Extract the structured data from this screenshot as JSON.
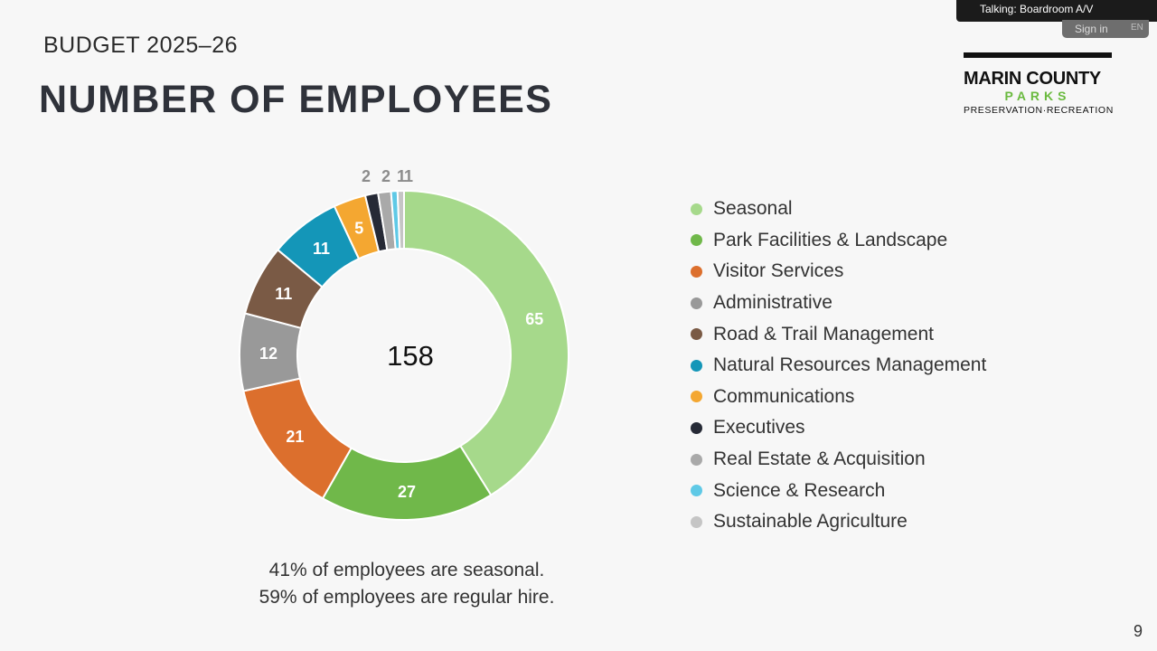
{
  "slide": {
    "subtitle": "BUDGET 2025–26",
    "title": "NUMBER OF EMPLOYEES",
    "page_number": "9",
    "notes": [
      "41% of employees are seasonal.",
      "59% of employees are regular hire."
    ]
  },
  "overlay": {
    "talking": "Talking: Boardroom A/V",
    "sign_in": "Sign in",
    "language": "EN"
  },
  "logo": {
    "line1": "MARIN COUNTY",
    "line2": "PARKS",
    "line3": "PRESERVATION·RECREATION"
  },
  "chart_data": {
    "type": "pie",
    "donut": true,
    "center_label": "158",
    "legend_position": "right",
    "categories": [
      "Seasonal",
      "Park Facilities & Landscape",
      "Visitor Services",
      "Administrative",
      "Road & Trail Management",
      "Natural Resources Management",
      "Communications",
      "Executives",
      "Real Estate & Acquisition",
      "Science & Research",
      "Sustainable Agriculture"
    ],
    "values": [
      65,
      27,
      21,
      12,
      11,
      11,
      5,
      2,
      2,
      1,
      1
    ],
    "data_labels": [
      "65",
      "27",
      "21",
      "12",
      "11",
      "11",
      "5",
      "2",
      "2",
      "1",
      "1"
    ],
    "outside_label_values": [
      2,
      2,
      1,
      1
    ],
    "colors": [
      "#a6d98b",
      "#70b84a",
      "#dc6f2d",
      "#999999",
      "#7a5a45",
      "#1496b8",
      "#f4a731",
      "#262a36",
      "#a9a9a9",
      "#5fc9e6",
      "#c5c5c5"
    ]
  }
}
